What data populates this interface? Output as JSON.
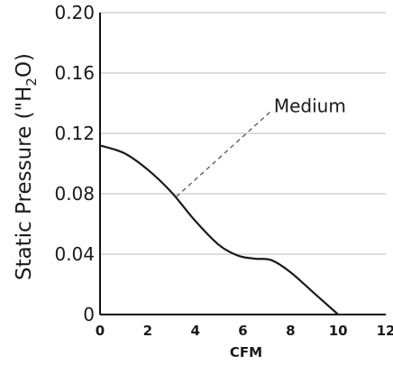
{
  "chart_data": {
    "type": "line",
    "xlabel": "CFM",
    "ylabel_main": "Static Pressure (\"H",
    "ylabel_sub": "2",
    "ylabel_end": "O)",
    "xlim": [
      0,
      12
    ],
    "ylim": [
      0,
      0.2
    ],
    "x_ticks": [
      {
        "value": 0,
        "label": "0"
      },
      {
        "value": 2,
        "label": "2"
      },
      {
        "value": 4,
        "label": "4"
      },
      {
        "value": 6,
        "label": "6"
      },
      {
        "value": 8,
        "label": "8"
      },
      {
        "value": 10,
        "label": "10"
      },
      {
        "value": 12,
        "label": "12"
      }
    ],
    "y_ticks": [
      {
        "value": 0,
        "label": "0"
      },
      {
        "value": 0.04,
        "label": "0.04"
      },
      {
        "value": 0.08,
        "label": "0.08"
      },
      {
        "value": 0.12,
        "label": "0.12"
      },
      {
        "value": 0.16,
        "label": "0.16"
      },
      {
        "value": 0.2,
        "label": "0.20"
      }
    ],
    "grid": "horizontal",
    "series": [
      {
        "name": "Medium",
        "color": "#1a1a1a",
        "x": [
          0,
          1,
          2,
          3,
          4,
          5,
          5.8,
          6.5,
          7.2,
          8,
          9,
          10
        ],
        "y": [
          0.112,
          0.107,
          0.096,
          0.081,
          0.062,
          0.046,
          0.039,
          0.037,
          0.036,
          0.028,
          0.014,
          0.0
        ]
      }
    ],
    "annotation": {
      "text": "Medium",
      "line_from": [
        3.2,
        0.078
      ],
      "line_to": [
        7.2,
        0.135
      ],
      "text_at": [
        7.3,
        0.134
      ]
    }
  }
}
